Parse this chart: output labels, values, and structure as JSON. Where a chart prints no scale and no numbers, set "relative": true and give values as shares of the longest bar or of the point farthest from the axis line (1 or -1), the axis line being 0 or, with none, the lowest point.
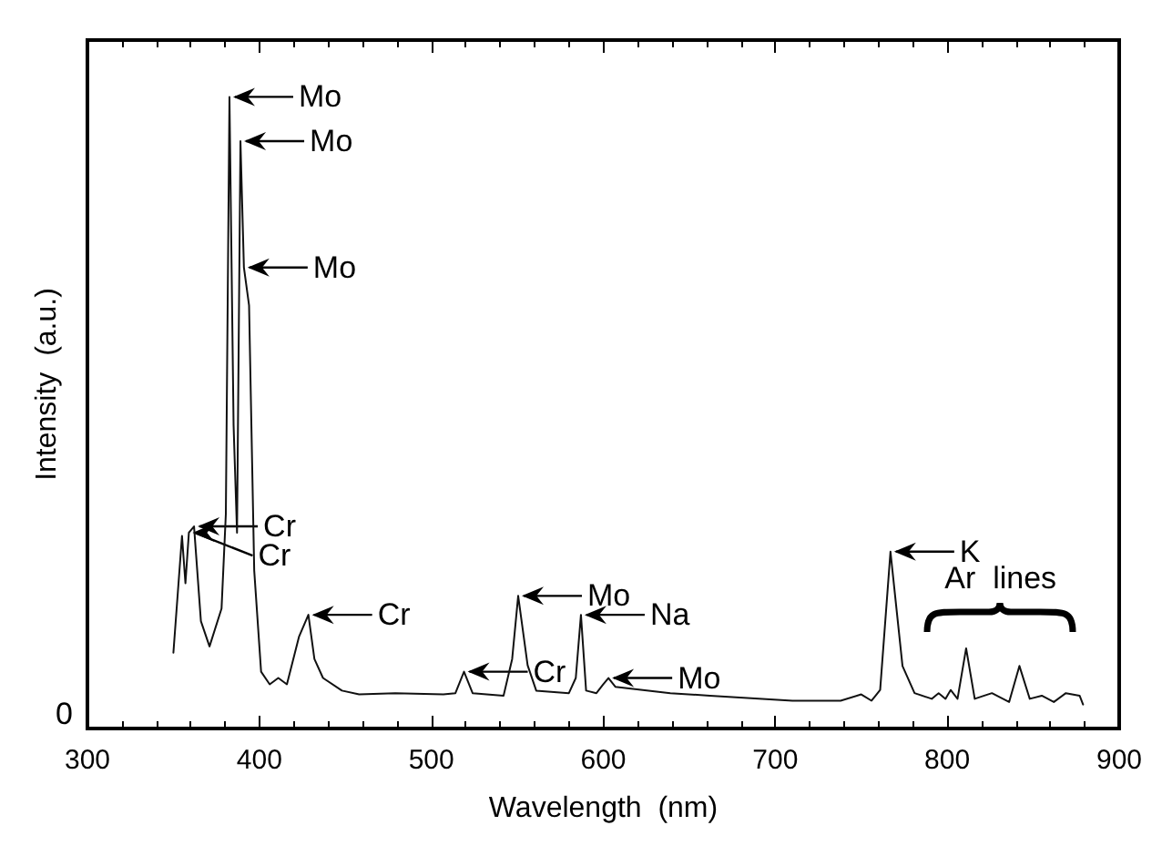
{
  "chart_data": {
    "type": "line",
    "relative": true,
    "xlabel": "Wavelength  (nm)",
    "ylabel": "Intensity  (a.u.)",
    "xlim": [
      300,
      900
    ],
    "xticks": [
      300,
      400,
      500,
      600,
      700,
      800,
      900
    ],
    "grid": false,
    "marker": "none",
    "line_style": "solid",
    "series": [
      {
        "color": "#111111",
        "x": [
          350,
          355,
          357,
          359,
          362,
          366,
          371,
          378,
          380.5,
          382.6,
          385,
          387,
          389,
          391,
          394,
          397,
          401,
          406,
          411,
          416,
          423,
          428.5,
          432,
          437,
          448,
          458,
          479,
          507,
          514,
          519,
          524,
          542,
          547,
          550.5,
          556,
          561,
          580,
          584,
          587,
          590,
          596,
          600,
          603,
          607,
          639,
          662,
          710,
          738,
          750,
          756,
          761,
          767,
          774,
          781,
          791,
          795,
          799,
          802,
          806,
          811,
          816,
          826,
          836,
          842,
          848,
          855,
          862,
          869,
          877,
          879
        ],
        "values": [
          0.12,
          0.305,
          0.23,
          0.31,
          0.32,
          0.17,
          0.13,
          0.19,
          0.34,
          1.0,
          0.48,
          0.31,
          0.93,
          0.73,
          0.67,
          0.25,
          0.09,
          0.07,
          0.08,
          0.07,
          0.145,
          0.18,
          0.11,
          0.08,
          0.06,
          0.054,
          0.056,
          0.054,
          0.056,
          0.09,
          0.056,
          0.052,
          0.11,
          0.21,
          0.1,
          0.06,
          0.056,
          0.08,
          0.18,
          0.06,
          0.056,
          0.07,
          0.08,
          0.066,
          0.056,
          0.052,
          0.044,
          0.044,
          0.054,
          0.044,
          0.061,
          0.28,
          0.099,
          0.056,
          0.047,
          0.056,
          0.047,
          0.061,
          0.047,
          0.127,
          0.047,
          0.056,
          0.042,
          0.099,
          0.047,
          0.052,
          0.042,
          0.056,
          0.052,
          0.038
        ]
      }
    ],
    "annotations": [
      "0",
      {
        "text": "Mo",
        "x": 382.6,
        "y": 1.0
      },
      {
        "text": "Mo",
        "x": 389,
        "y": 0.93
      },
      {
        "text": "Mo",
        "x": 391,
        "y": 0.73
      },
      {
        "text": "Cr",
        "x": 362,
        "y": 0.32
      },
      {
        "text": "Cr",
        "x": 359,
        "y": 0.31
      },
      {
        "text": "Cr",
        "x": 428.5,
        "y": 0.18
      },
      {
        "text": "Cr",
        "x": 519,
        "y": 0.09
      },
      {
        "text": "Mo",
        "x": 550.5,
        "y": 0.21
      },
      {
        "text": "Na",
        "x": 587,
        "y": 0.18
      },
      {
        "text": "Mo",
        "x": 603,
        "y": 0.08
      },
      {
        "text": "K",
        "x": 767,
        "y": 0.28
      },
      "Ar  lines"
    ]
  }
}
